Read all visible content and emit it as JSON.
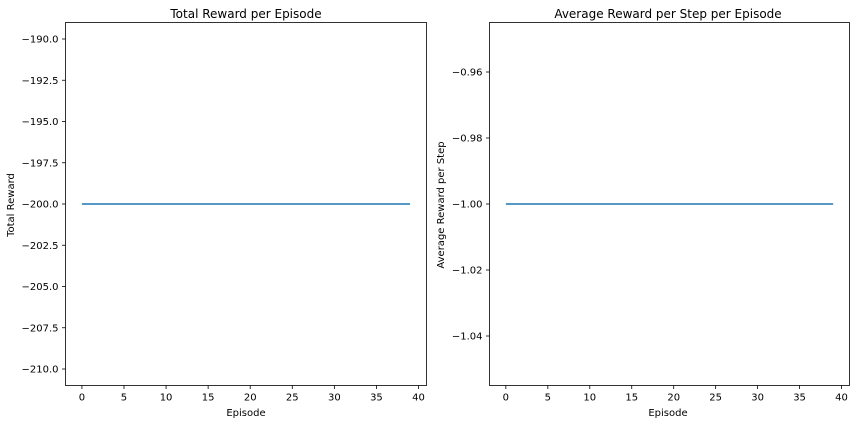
{
  "colors": {
    "series": "#1f77b4",
    "axes": "#000000",
    "background": "#ffffff"
  },
  "chart_data": [
    {
      "type": "line",
      "title": "Total Reward per Episode",
      "xlabel": "Episode",
      "ylabel": "Total Reward",
      "xlim": [
        -1.95,
        40.95
      ],
      "ylim": [
        -211,
        -189
      ],
      "xticks": [
        0,
        5,
        10,
        15,
        20,
        25,
        30,
        35,
        40
      ],
      "xtick_labels": [
        "0",
        "5",
        "10",
        "15",
        "20",
        "25",
        "30",
        "35",
        "40"
      ],
      "yticks": [
        -190.0,
        -192.5,
        -195.0,
        -197.5,
        -200.0,
        -202.5,
        -205.0,
        -207.5,
        -210.0
      ],
      "ytick_labels": [
        "−190.0",
        "−192.5",
        "−195.0",
        "−197.5",
        "−200.0",
        "−202.5",
        "−205.0",
        "−207.5",
        "−210.0"
      ],
      "grid": false,
      "series": [
        {
          "x": [
            0,
            39
          ],
          "values": [
            -200,
            -200
          ]
        }
      ]
    },
    {
      "type": "line",
      "title": "Average Reward per Step per Episode",
      "xlabel": "Episode",
      "ylabel": "Average Reward per Step",
      "xlim": [
        -1.95,
        40.95
      ],
      "ylim": [
        -1.055,
        -0.945
      ],
      "xticks": [
        0,
        5,
        10,
        15,
        20,
        25,
        30,
        35,
        40
      ],
      "xtick_labels": [
        "0",
        "5",
        "10",
        "15",
        "20",
        "25",
        "30",
        "35",
        "40"
      ],
      "yticks": [
        -0.96,
        -0.98,
        -1.0,
        -1.02,
        -1.04
      ],
      "ytick_labels": [
        "−0.96",
        "−0.98",
        "−1.00",
        "−1.02",
        "−1.04"
      ],
      "grid": false,
      "series": [
        {
          "x": [
            0,
            39
          ],
          "values": [
            -1.0,
            -1.0
          ]
        }
      ]
    }
  ]
}
